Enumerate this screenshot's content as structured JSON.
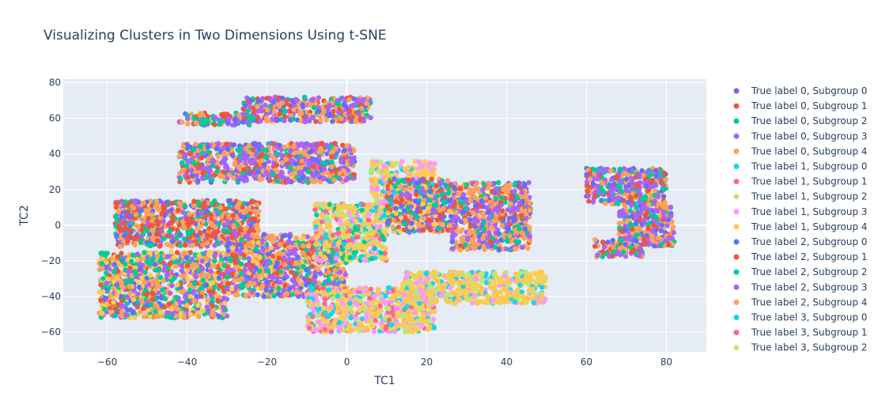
{
  "chart_data": {
    "type": "scatter",
    "title": "Visualizing Clusters in Two Dimensions Using t-SNE",
    "xlabel": "TC1",
    "ylabel": "TC2",
    "xlim": [
      -71,
      90
    ],
    "ylim": [
      -71,
      82
    ],
    "xticks": [
      -60,
      -40,
      -20,
      0,
      20,
      40,
      60,
      80
    ],
    "yticks": [
      -60,
      -40,
      -20,
      0,
      20,
      40,
      60,
      80
    ],
    "grid": true,
    "plot_background": "#e5ecf6",
    "legend_position": "right",
    "series": [
      {
        "name": "True label 0, Subgroup 0",
        "color": "#636efa"
      },
      {
        "name": "True label 0, Subgroup 1",
        "color": "#ef553b"
      },
      {
        "name": "True label 0, Subgroup 2",
        "color": "#00cc96"
      },
      {
        "name": "True label 0, Subgroup 3",
        "color": "#ab63fa"
      },
      {
        "name": "True label 0, Subgroup 4",
        "color": "#ffa15a"
      },
      {
        "name": "True label 1, Subgroup 0",
        "color": "#19d3f3"
      },
      {
        "name": "True label 1, Subgroup 1",
        "color": "#ff6692"
      },
      {
        "name": "True label 1, Subgroup 2",
        "color": "#b6e880"
      },
      {
        "name": "True label 1, Subgroup 3",
        "color": "#ff97ff"
      },
      {
        "name": "True label 1, Subgroup 4",
        "color": "#fecb52"
      },
      {
        "name": "True label 2, Subgroup 0",
        "color": "#636efa"
      },
      {
        "name": "True label 2, Subgroup 1",
        "color": "#ef553b"
      },
      {
        "name": "True label 2, Subgroup 2",
        "color": "#00cc96"
      },
      {
        "name": "True label 2, Subgroup 3",
        "color": "#ab63fa"
      },
      {
        "name": "True label 2, Subgroup 4",
        "color": "#ffa15a"
      },
      {
        "name": "True label 3, Subgroup 0",
        "color": "#19d3f3"
      },
      {
        "name": "True label 3, Subgroup 1",
        "color": "#ff6692"
      },
      {
        "name": "True label 3, Subgroup 2",
        "color": "#b6e880"
      }
    ],
    "clusters": [
      {
        "x_range": [
          -42,
          -24
        ],
        "y_range": [
          56,
          63
        ],
        "colors": [
          0,
          1,
          2,
          3,
          4,
          2
        ]
      },
      {
        "x_range": [
          -26,
          6
        ],
        "y_range": [
          58,
          72
        ],
        "colors": [
          0,
          1,
          2,
          3,
          4,
          3,
          4
        ]
      },
      {
        "x_range": [
          -42,
          2
        ],
        "y_range": [
          24,
          46
        ],
        "colors": [
          0,
          1,
          2,
          3,
          4,
          4,
          3
        ]
      },
      {
        "x_range": [
          -58,
          -22
        ],
        "y_range": [
          -12,
          14
        ],
        "colors": [
          0,
          1,
          2,
          3,
          4,
          1,
          4
        ]
      },
      {
        "x_range": [
          -62,
          -30
        ],
        "y_range": [
          -52,
          -15
        ],
        "colors": [
          0,
          1,
          2,
          3,
          4,
          9,
          9,
          4,
          3,
          2
        ]
      },
      {
        "x_range": [
          -30,
          0
        ],
        "y_range": [
          -40,
          -5
        ],
        "colors": [
          0,
          1,
          2,
          3,
          4,
          9,
          4,
          3
        ]
      },
      {
        "x_range": [
          -8,
          10
        ],
        "y_range": [
          -20,
          12
        ],
        "colors": [
          9,
          9,
          9,
          5,
          6,
          7,
          8,
          2
        ]
      },
      {
        "x_range": [
          6,
          22
        ],
        "y_range": [
          10,
          36
        ],
        "colors": [
          9,
          9,
          9,
          8,
          5,
          7,
          8,
          9
        ]
      },
      {
        "x_range": [
          -10,
          22
        ],
        "y_range": [
          -60,
          -35
        ],
        "colors": [
          9,
          8,
          9,
          5,
          7,
          6,
          9,
          8,
          9
        ]
      },
      {
        "x_range": [
          14,
          50
        ],
        "y_range": [
          -44,
          -26
        ],
        "colors": [
          9,
          9,
          7,
          9,
          8,
          5,
          9
        ]
      },
      {
        "x_range": [
          26,
          46
        ],
        "y_range": [
          -14,
          24
        ],
        "colors": [
          0,
          1,
          2,
          3,
          4,
          3,
          4,
          4
        ]
      },
      {
        "x_range": [
          10,
          26
        ],
        "y_range": [
          -4,
          26
        ],
        "colors": [
          0,
          1,
          2,
          3,
          4,
          9
        ]
      },
      {
        "x_range": [
          60,
          80
        ],
        "y_range": [
          12,
          32
        ],
        "colors": [
          0,
          1,
          2,
          3,
          4,
          4,
          3
        ]
      },
      {
        "x_range": [
          68,
          82
        ],
        "y_range": [
          -12,
          12
        ],
        "colors": [
          0,
          1,
          2,
          3,
          4,
          4,
          3
        ]
      },
      {
        "x_range": [
          62,
          74
        ],
        "y_range": [
          -18,
          -8
        ],
        "colors": [
          0,
          1,
          2,
          3,
          4,
          4
        ]
      }
    ]
  }
}
